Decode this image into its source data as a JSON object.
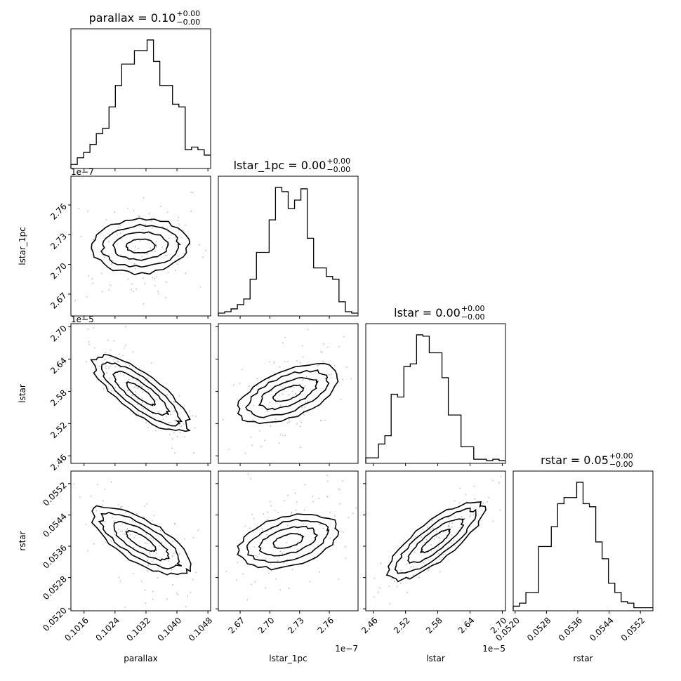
{
  "chart_data": {
    "type": "corner",
    "parameters": [
      "parallax",
      "lstar_1pc",
      "lstar",
      "rstar"
    ],
    "axis_labels": [
      "parallax",
      "lstar_1pc",
      "lstar",
      "rstar"
    ],
    "titles": [
      {
        "param": "parallax",
        "main": "parallax = 0.10",
        "sup": "+0.00",
        "sub": "−0.00"
      },
      {
        "param": "lstar_1pc",
        "main": "lstar_1pc = 0.00",
        "sup": "+0.00",
        "sub": "−0.00"
      },
      {
        "param": "lstar",
        "main": "lstar = 0.00",
        "sup": "+0.00",
        "sub": "−0.00"
      },
      {
        "param": "rstar",
        "main": "rstar = 0.05",
        "sup": "+0.00",
        "sub": "−0.00"
      }
    ],
    "ranges": [
      [
        0.10126,
        0.10487
      ],
      [
        2.648e-07,
        2.789e-07
      ],
      [
        2.446e-05,
        2.706e-05
      ],
      [
        0.05195,
        0.05552
      ]
    ],
    "ticks": [
      {
        "values": [
          0.1016,
          0.1024,
          0.1032,
          0.104,
          0.1048
        ],
        "labels": [
          "0.1016",
          "0.1024",
          "0.1032",
          "0.1040",
          "0.1048"
        ],
        "offset": ""
      },
      {
        "values": [
          2.67,
          2.7,
          2.73,
          2.76
        ],
        "labels": [
          "2.67",
          "2.70",
          "2.73",
          "2.76"
        ],
        "offset": "1e−7"
      },
      {
        "values": [
          2.46,
          2.52,
          2.58,
          2.64,
          2.7
        ],
        "labels": [
          "2.46",
          "2.52",
          "2.58",
          "2.64",
          "2.70"
        ],
        "offset": "1e−5"
      },
      {
        "values": [
          0.052,
          0.0528,
          0.0536,
          0.0544,
          0.0552
        ],
        "labels": [
          "0.0520",
          "0.0528",
          "0.0536",
          "0.0544",
          "0.0552"
        ],
        "offset": ""
      }
    ],
    "histograms": [
      {
        "param": "parallax",
        "counts": [
          3,
          8,
          12,
          18,
          26,
          30,
          46,
          62,
          78,
          78,
          88,
          88,
          96,
          80,
          62,
          62,
          48,
          46,
          14,
          16,
          14,
          10
        ]
      },
      {
        "param": "lstar_1pc",
        "counts": [
          2,
          3,
          5,
          8,
          12,
          26,
          45,
          45,
          68,
          91,
          88,
          76,
          82,
          90,
          55,
          34,
          34,
          28,
          26,
          10,
          3,
          2
        ]
      },
      {
        "param": "lstar",
        "counts": [
          4,
          4,
          14,
          20,
          50,
          48,
          70,
          72,
          93,
          92,
          80,
          80,
          62,
          35,
          35,
          12,
          12,
          3,
          3,
          2,
          3,
          2
        ]
      },
      {
        "param": "rstar",
        "counts": [
          3,
          5,
          12,
          12,
          42,
          42,
          55,
          70,
          74,
          74,
          84,
          70,
          68,
          45,
          34,
          18,
          12,
          6,
          5,
          2,
          2,
          2
        ]
      }
    ],
    "pairs": [
      {
        "x": "parallax",
        "y": "lstar_1pc",
        "correlation": 0.05
      },
      {
        "x": "parallax",
        "y": "lstar",
        "correlation": -0.88
      },
      {
        "x": "lstar_1pc",
        "y": "lstar",
        "correlation": 0.45
      },
      {
        "x": "parallax",
        "y": "rstar",
        "correlation": -0.7
      },
      {
        "x": "lstar_1pc",
        "y": "rstar",
        "correlation": 0.3
      },
      {
        "x": "lstar",
        "y": "rstar",
        "correlation": 0.9
      }
    ],
    "grid": false,
    "colors": {
      "line": "#000000",
      "density": "#000000",
      "background": "#ffffff"
    }
  }
}
